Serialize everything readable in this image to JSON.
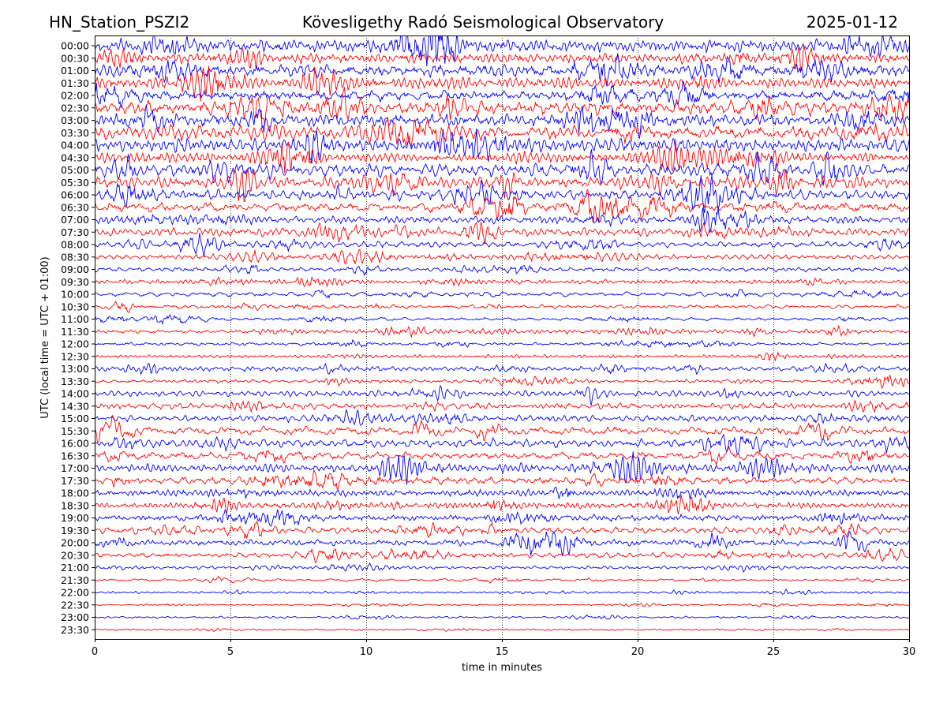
{
  "header": {
    "station": "HN_Station_PSZI2",
    "title": "Kövesligethy Radó Seismological Observatory",
    "date": "2025-01-12"
  },
  "chart_data": {
    "type": "line",
    "title": "Kövesligethy Radó Seismological Observatory",
    "xlabel": "time in minutes",
    "ylabel": "UTC (local time = UTC + 01:00)",
    "xlim": [
      0,
      30
    ],
    "x_ticks": [
      0,
      5,
      10,
      15,
      20,
      25,
      30
    ],
    "grid": "vertical dotted lines at x ticks",
    "row_labels": [
      "00:00",
      "00:30",
      "01:00",
      "01:30",
      "02:00",
      "02:30",
      "03:00",
      "03:30",
      "04:00",
      "04:30",
      "05:00",
      "05:30",
      "06:00",
      "06:30",
      "07:00",
      "07:30",
      "08:00",
      "08:30",
      "09:00",
      "09:30",
      "10:00",
      "10:30",
      "11:00",
      "11:30",
      "12:00",
      "12:30",
      "13:00",
      "13:30",
      "14:00",
      "14:30",
      "15:00",
      "15:30",
      "16:00",
      "16:30",
      "17:00",
      "17:30",
      "18:00",
      "18:30",
      "19:00",
      "19:30",
      "20:00",
      "20:30",
      "21:00",
      "21:30",
      "22:00",
      "22:30",
      "23:00",
      "23:30"
    ],
    "trace_colors": [
      "#0000ff",
      "#ff0000"
    ],
    "relative_amplitude": [
      1.6,
      1.6,
      1.8,
      1.8,
      1.8,
      1.8,
      1.8,
      1.8,
      1.7,
      1.6,
      1.5,
      1.4,
      1.3,
      1.2,
      1.0,
      0.9,
      0.8,
      0.75,
      0.6,
      0.6,
      0.65,
      0.55,
      0.5,
      0.5,
      0.5,
      0.55,
      0.6,
      0.6,
      0.7,
      0.8,
      0.9,
      1.0,
      1.0,
      1.0,
      1.05,
      1.05,
      1.05,
      1.0,
      1.0,
      0.95,
      0.85,
      0.7,
      0.4,
      0.3,
      0.25,
      0.25,
      0.25,
      0.25
    ]
  }
}
